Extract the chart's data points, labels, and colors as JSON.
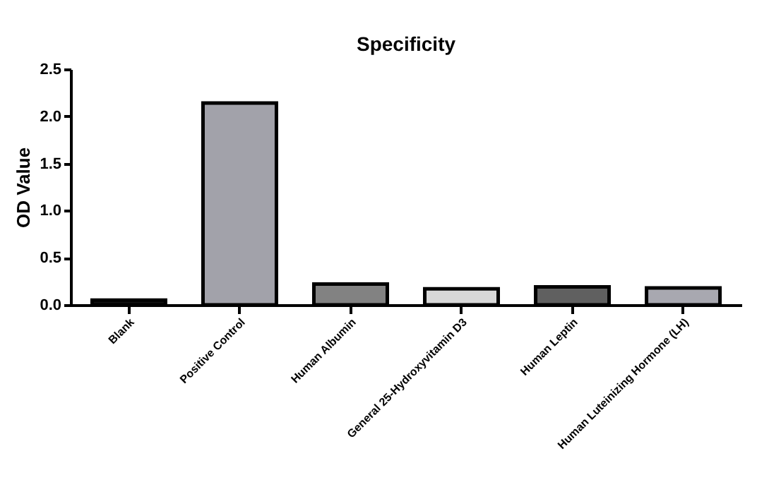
{
  "chart_data": {
    "type": "bar",
    "title": "Specificity",
    "ylabel": "OD Value",
    "categories": [
      "Blank",
      "Positive Control",
      "Human Albumin",
      "General 25-Hydroxyvitamin D3",
      "Human Leptin",
      "Human Luteinizing Hormone (LH)"
    ],
    "values": [
      0.05,
      2.14,
      0.22,
      0.17,
      0.19,
      0.18
    ],
    "colors": [
      "#111111",
      "#a2a2aa",
      "#828282",
      "#d8d8d8",
      "#606060",
      "#a8a8b0"
    ],
    "ylim": [
      0,
      2.5
    ],
    "yticks": [
      {
        "value": 0,
        "label": "0.0"
      },
      0.5,
      {
        "value": 1,
        "label": "1.0"
      },
      1.5,
      {
        "value": 2,
        "label": "2.0"
      },
      2.5
    ],
    "grid": false,
    "legend": false
  }
}
